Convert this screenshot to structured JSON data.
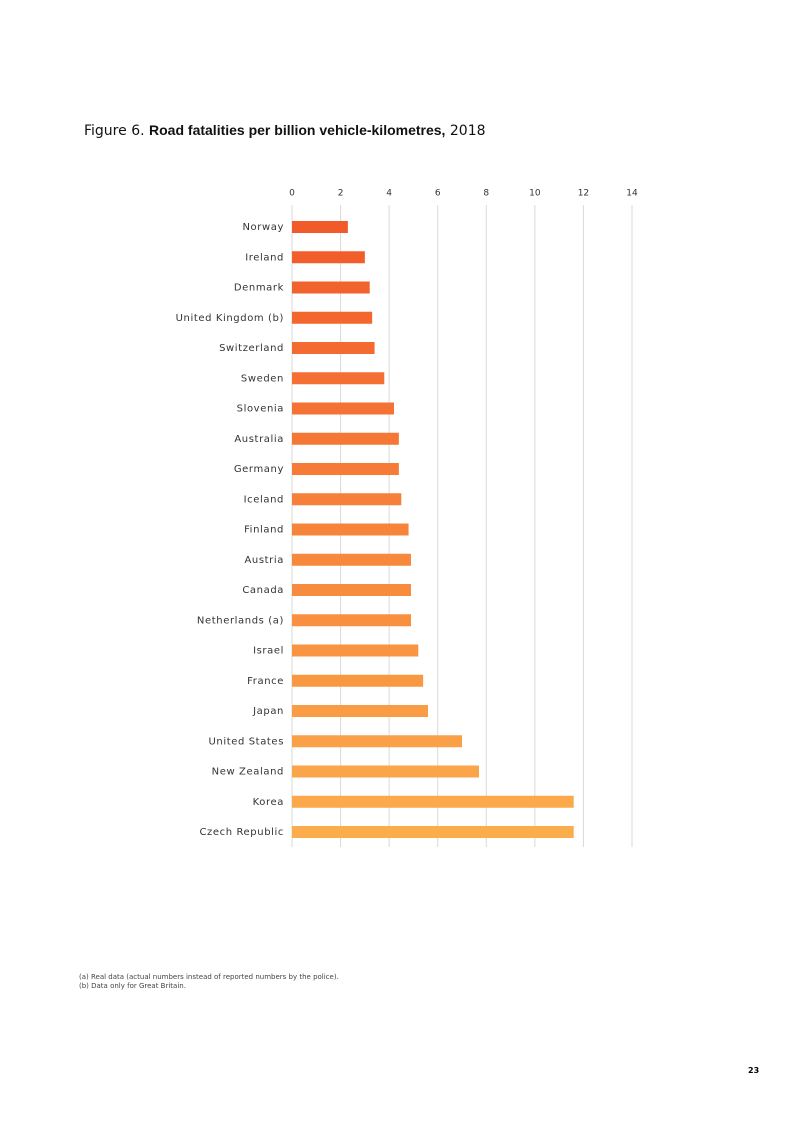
{
  "header": {
    "figure_label": "Figure 6.",
    "title": "Road fatalities per billion vehicle-kilometres,",
    "year": "2018"
  },
  "chart_data": {
    "type": "bar",
    "orientation": "horizontal",
    "categories": [
      "Norway",
      "Ireland",
      "Denmark",
      "United Kingdom (b)",
      "Switzerland",
      "Sweden",
      "Slovenia",
      "Australia",
      "Germany",
      "Iceland",
      "Finland",
      "Austria",
      "Canada",
      "Netherlands (a)",
      "Israel",
      "France",
      "Japan",
      "United States",
      "New Zealand",
      "Korea",
      "Czech Republic"
    ],
    "values": [
      2.3,
      3.0,
      3.2,
      3.3,
      3.4,
      3.8,
      4.2,
      4.4,
      4.4,
      4.5,
      4.8,
      4.9,
      4.9,
      4.9,
      5.2,
      5.4,
      5.6,
      7.0,
      7.7,
      11.6,
      11.6
    ],
    "color_range": [
      "#f15a29",
      "#fbad4c"
    ],
    "xlim": [
      0,
      14
    ],
    "xticks": [
      0,
      2,
      4,
      6,
      8,
      10,
      12,
      14
    ],
    "grid": true
  },
  "footnotes": [
    "(a) Real data (actual numbers instead of reported numbers by the police).",
    "(b) Data only for Great Britain."
  ],
  "page_number": "23"
}
